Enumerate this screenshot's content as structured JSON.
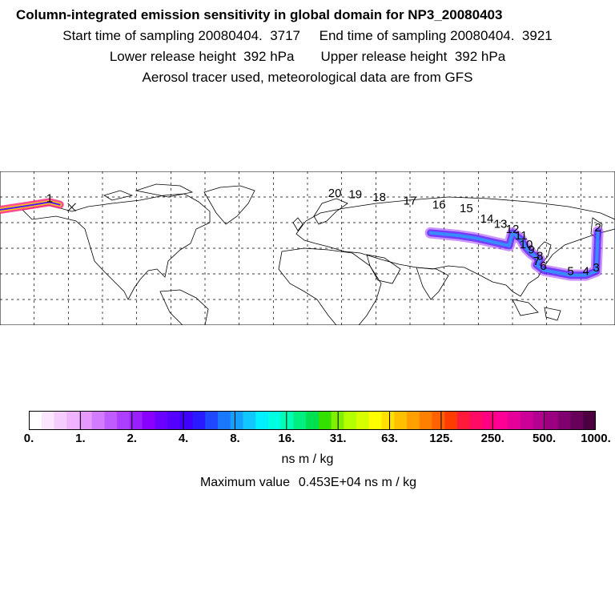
{
  "header": {
    "title": "Column-integrated emission sensitivity in global domain for NP3_20080403",
    "start_label": "Start time of sampling",
    "start_value": "20080404.  3717",
    "end_label": "End time of sampling",
    "end_value": "20080404.  3921",
    "lower_label": "Lower release height",
    "lower_value": "392 hPa",
    "upper_label": "Upper release height",
    "upper_value": "392 hPa",
    "info": "Aerosol tracer used, meteorological data are from GFS"
  },
  "map": {
    "projection": "equirectangular",
    "lon_range": [
      -180,
      180
    ],
    "lat_range": [
      -30,
      90
    ],
    "grid": true,
    "plume_colors": [
      "#a23cff",
      "#4f17ff",
      "#2aa0ff",
      "#ff2a80",
      "#ffd700"
    ],
    "trajectory_labels": [
      {
        "text": "1",
        "lon": -151,
        "lat": 66
      },
      {
        "text": "2",
        "lon": 170,
        "lat": 43
      },
      {
        "text": "3",
        "lon": 169,
        "lat": 12
      },
      {
        "text": "4",
        "lon": 163,
        "lat": 9
      },
      {
        "text": "5",
        "lon": 154,
        "lat": 9
      },
      {
        "text": "6",
        "lon": 138,
        "lat": 13
      },
      {
        "text": "7",
        "lon": 134,
        "lat": 17
      },
      {
        "text": "8",
        "lon": 136,
        "lat": 21
      },
      {
        "text": "9",
        "lon": 131,
        "lat": 26
      },
      {
        "text": "10",
        "lon": 128,
        "lat": 30
      },
      {
        "text": "11",
        "lon": 125,
        "lat": 37
      },
      {
        "text": "12",
        "lon": 120,
        "lat": 42
      },
      {
        "text": "13",
        "lon": 113,
        "lat": 46
      },
      {
        "text": "14",
        "lon": 105,
        "lat": 50
      },
      {
        "text": "15",
        "lon": 93,
        "lat": 58
      },
      {
        "text": "16",
        "lon": 77,
        "lat": 61
      },
      {
        "text": "17",
        "lon": 60,
        "lat": 64
      },
      {
        "text": "18",
        "lon": 42,
        "lat": 67
      },
      {
        "text": "19",
        "lon": 28,
        "lat": 69
      },
      {
        "text": "20",
        "lon": 16,
        "lat": 70
      }
    ]
  },
  "colorbar": {
    "colors": [
      "#ffffff",
      "#fbe6ff",
      "#f6ccff",
      "#f0b3ff",
      "#e699ff",
      "#d27bff",
      "#c05cff",
      "#ad3dff",
      "#9a1fff",
      "#8a00ff",
      "#6a00ff",
      "#5500ff",
      "#4000ff",
      "#2a1aff",
      "#1f48ff",
      "#1a78ff",
      "#15a0ff",
      "#10c8ff",
      "#00f0ff",
      "#00ffe0",
      "#00ffb4",
      "#00f080",
      "#00e050",
      "#33e000",
      "#80f000",
      "#b4ff00",
      "#d8ff00",
      "#ffff00",
      "#ffe000",
      "#ffc000",
      "#ffa000",
      "#ff8000",
      "#ff6000",
      "#ff3c00",
      "#ff1a3c",
      "#ff0a64",
      "#ff0080",
      "#ff0096",
      "#e6009a",
      "#cc0099",
      "#b40090",
      "#9a0080",
      "#800070",
      "#660058",
      "#4d0040"
    ],
    "tick_labels": [
      "0.",
      "1.",
      "2.",
      "4.",
      "8.",
      "16.",
      "31.",
      "63.",
      "125.",
      "250.",
      "500.",
      "1000."
    ],
    "units": "ns m / kg",
    "max_label": "Maximum value",
    "max_value": "0.453E+04 ns m / kg"
  }
}
